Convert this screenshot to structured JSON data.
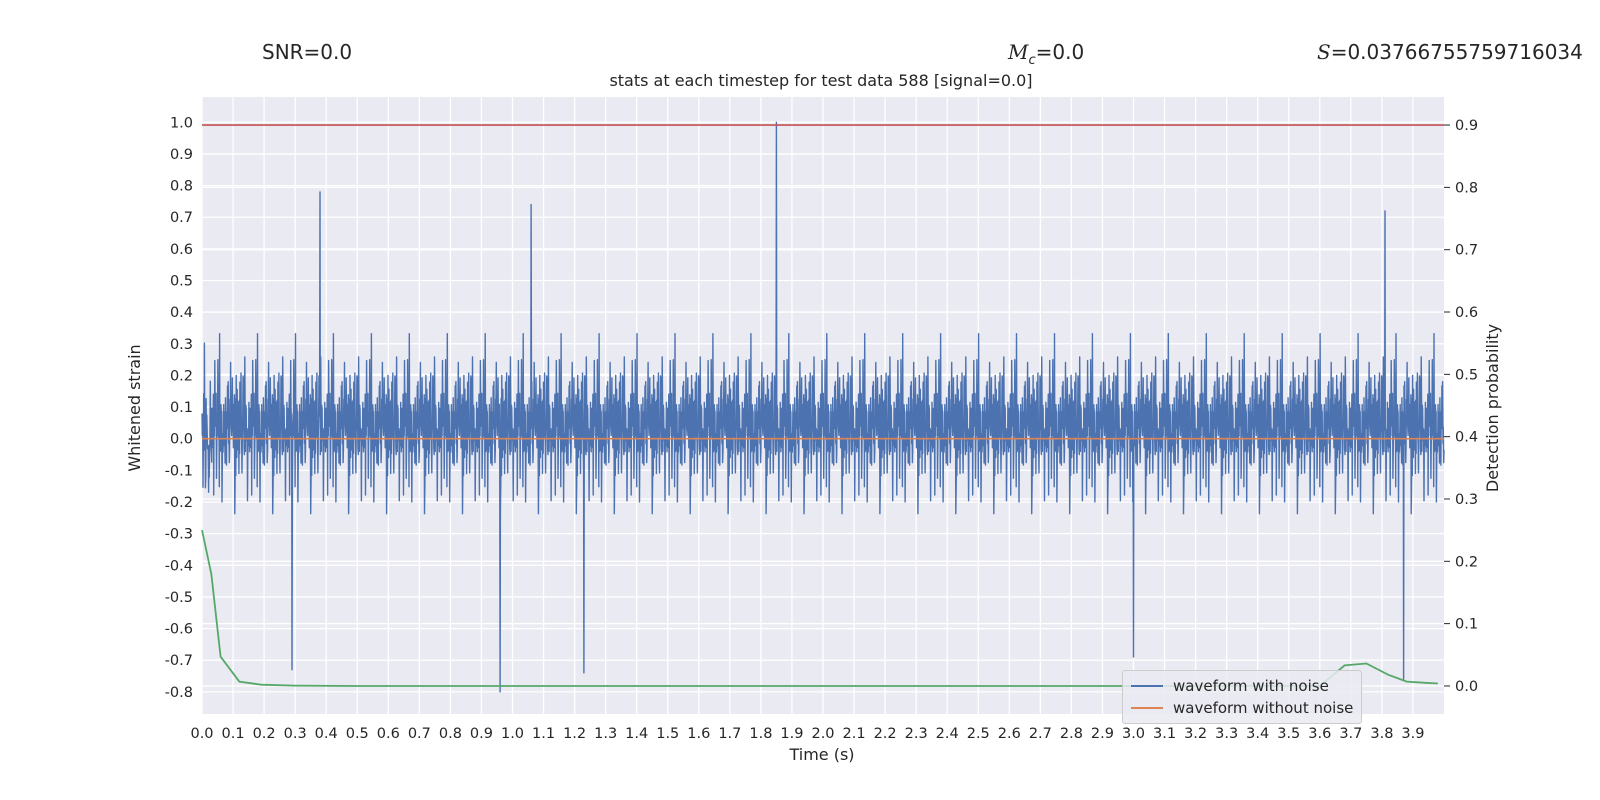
{
  "header": {
    "snr_text": "SNR=0.0",
    "mc_symbol": "M",
    "mc_sub": "c",
    "mc_value": "=0.0",
    "s_symbol": "S",
    "s_value": "=0.03766755759716034"
  },
  "chart_data": {
    "type": "line",
    "title": "stats at each timestep for test data 588 [signal=0.0]",
    "xlabel": "Time (s)",
    "ylabel_left": "Whitened strain",
    "ylabel_right": "Detection probability",
    "xlim": [
      0.0,
      4.0
    ],
    "ylim_left": [
      -0.87,
      1.08
    ],
    "ylim_right": [
      -0.045,
      0.945
    ],
    "x_ticks": [
      "0.0",
      "0.1",
      "0.2",
      "0.3",
      "0.4",
      "0.5",
      "0.6",
      "0.7",
      "0.8",
      "0.9",
      "1.0",
      "1.1",
      "1.2",
      "1.3",
      "1.4",
      "1.5",
      "1.6",
      "1.7",
      "1.8",
      "1.9",
      "2.0",
      "2.1",
      "2.2",
      "2.3",
      "2.4",
      "2.5",
      "2.6",
      "2.7",
      "2.8",
      "2.9",
      "3.0",
      "3.1",
      "3.2",
      "3.3",
      "3.4",
      "3.5",
      "3.6",
      "3.7",
      "3.8",
      "3.9"
    ],
    "y_ticks_left": [
      "1.0",
      "0.9",
      "0.8",
      "0.7",
      "0.6",
      "0.5",
      "0.4",
      "0.3",
      "0.2",
      "0.1",
      "0.0",
      "-0.1",
      "-0.2",
      "-0.3",
      "-0.4",
      "-0.5",
      "-0.6",
      "-0.7",
      "-0.8"
    ],
    "y_ticks_right": [
      "0.9",
      "0.8",
      "0.7",
      "0.6",
      "0.5",
      "0.4",
      "0.3",
      "0.2",
      "0.1",
      "0.0"
    ],
    "grid": true,
    "legend_position": "lower-right",
    "colors": {
      "noisy": "#4c72b0",
      "clean": "#dd8452",
      "probability": "#55a868",
      "threshold": "#c44e52",
      "background": "#eaeaf2"
    },
    "series": [
      {
        "name": "waveform with noise",
        "axis": "left",
        "x_range": [
          0.0,
          4.0
        ],
        "envelope_approx": [
          -0.8,
          1.0
        ],
        "notable_peaks": [
          {
            "x": 0.38,
            "y": 0.78
          },
          {
            "x": 1.06,
            "y": 0.74
          },
          {
            "x": 1.85,
            "y": 1.0
          },
          {
            "x": 3.81,
            "y": 0.72
          }
        ],
        "notable_troughs": [
          {
            "x": 0.29,
            "y": -0.73
          },
          {
            "x": 0.96,
            "y": -0.8
          },
          {
            "x": 1.23,
            "y": -0.74
          },
          {
            "x": 3.0,
            "y": -0.69
          },
          {
            "x": 3.87,
            "y": -0.76
          }
        ]
      },
      {
        "name": "waveform without noise",
        "axis": "left",
        "x": [
          0.0,
          4.0
        ],
        "y": [
          0.0,
          0.0
        ]
      },
      {
        "name": "",
        "axis": "right",
        "x": [
          0.0,
          0.03,
          0.06,
          0.12,
          0.19,
          0.3,
          0.5,
          1.0,
          2.0,
          3.0,
          3.6,
          3.68,
          3.75,
          3.82,
          3.88,
          3.94,
          3.98
        ],
        "y": [
          0.25,
          0.18,
          0.047,
          0.007,
          0.002,
          0.0005,
          0.0,
          0.0,
          0.0,
          0.0,
          0.0002,
          0.033,
          0.036,
          0.018,
          0.007,
          0.005,
          0.004
        ]
      },
      {
        "name": "",
        "axis": "right",
        "x": [
          0.0,
          4.0
        ],
        "y": [
          0.9,
          0.9
        ]
      }
    ]
  }
}
